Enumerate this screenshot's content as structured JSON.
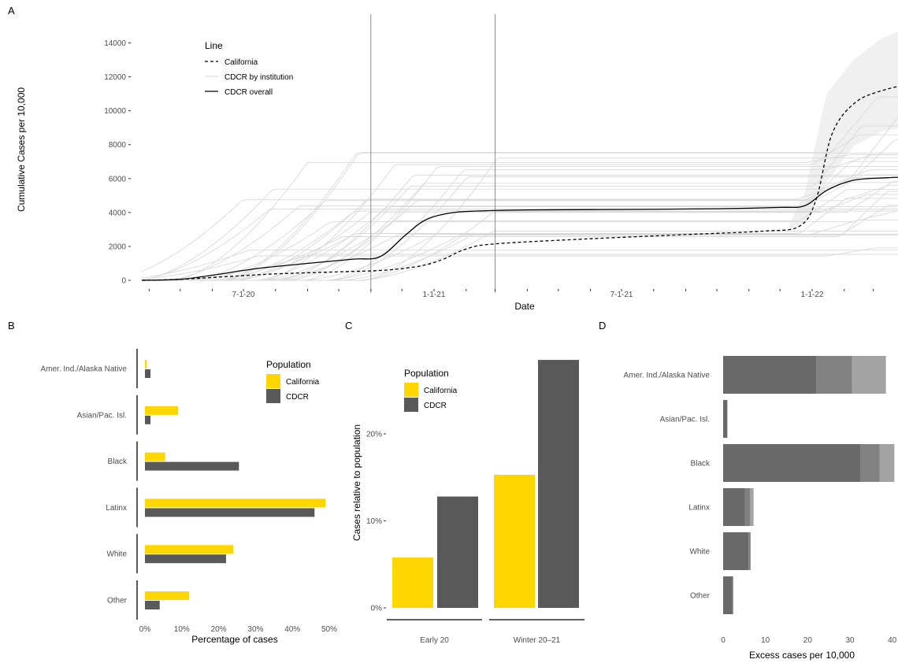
{
  "chart_data": [
    {
      "panel": "A",
      "type": "line",
      "xlabel": "Date",
      "ylabel": "Cumulative Cases per 10,000",
      "x_ticks": [
        "7-1-20",
        "1-1-21",
        "7-1-21",
        "1-1-22"
      ],
      "x_tick_dates": [
        "2020-07-01",
        "2021-01-01",
        "2021-07-01",
        "2022-01-01"
      ],
      "xlim": [
        "2020-03-15",
        "2022-04-30"
      ],
      "y_ticks": [
        "0",
        "2000",
        "4000",
        "6000",
        "8000",
        "10000",
        "12000",
        "14000"
      ],
      "ylim": [
        0,
        15500
      ],
      "vlines": [
        "2020-11-01",
        "2021-03-01"
      ],
      "legend_title": "Line",
      "legend_items": [
        "California",
        "CDCR by institution",
        "CDCR overall"
      ],
      "colors": {
        "institution": "#d9d9d9",
        "overall": "#000000",
        "ribbon": "#f0f0f0"
      },
      "series": [
        {
          "name": "California",
          "style": "dashed",
          "dates": [
            "2020-03-25",
            "2020-05-01",
            "2020-06-15",
            "2020-08-01",
            "2020-10-01",
            "2020-11-15",
            "2020-12-20",
            "2021-01-10",
            "2021-02-01",
            "2021-03-01",
            "2021-06-01",
            "2021-09-01",
            "2021-11-15",
            "2021-12-20",
            "2022-01-05",
            "2022-01-20",
            "2022-02-10",
            "2022-03-10",
            "2022-04-30"
          ],
          "values": [
            0,
            60,
            220,
            380,
            500,
            600,
            860,
            1250,
            1850,
            2150,
            2450,
            2700,
            2900,
            3200,
            4800,
            8600,
            10400,
            11200,
            11900
          ]
        },
        {
          "name": "CDCR overall",
          "style": "solid",
          "dates": [
            "2020-03-25",
            "2020-05-01",
            "2020-06-01",
            "2020-07-15",
            "2020-09-01",
            "2020-10-15",
            "2020-11-10",
            "2020-12-05",
            "2020-12-25",
            "2021-01-20",
            "2021-02-20",
            "2021-04-01",
            "2021-07-01",
            "2021-10-01",
            "2021-12-01",
            "2021-12-25",
            "2022-01-15",
            "2022-02-10",
            "2022-03-15",
            "2022-04-30"
          ],
          "values": [
            0,
            60,
            300,
            700,
            1000,
            1250,
            1400,
            2700,
            3600,
            4000,
            4100,
            4150,
            4180,
            4220,
            4300,
            4400,
            5300,
            5900,
            6050,
            6150
          ]
        }
      ],
      "ribbon": {
        "dates": [
          "2021-12-10",
          "2021-12-25",
          "2022-01-15",
          "2022-02-10",
          "2022-03-10",
          "2022-04-30"
        ],
        "low": [
          3000,
          3400,
          5800,
          7900,
          8800,
          9300
        ],
        "high": [
          3300,
          5200,
          11000,
          13000,
          14300,
          15500
        ]
      }
    },
    {
      "panel": "B",
      "type": "bar",
      "orientation": "horizontal",
      "categories": [
        "Amer. Ind./Alaska Native",
        "Asian/Pac. Isl.",
        "Black",
        "Latinx",
        "White",
        "Other"
      ],
      "series": [
        {
          "name": "California",
          "values": [
            0.5,
            9,
            5.5,
            49,
            24,
            12
          ]
        },
        {
          "name": "CDCR",
          "values": [
            1.5,
            1.5,
            25.5,
            46,
            22,
            4
          ]
        }
      ],
      "xlabel": "Percentage of cases",
      "x_ticks": [
        "0%",
        "10%",
        "20%",
        "30%",
        "40%",
        "50%"
      ],
      "xlim": [
        0,
        50
      ],
      "legend_title": "Population",
      "legend_items": [
        "California",
        "CDCR"
      ],
      "colors": {
        "California": "#ffd700",
        "CDCR": "#595959"
      }
    },
    {
      "panel": "C",
      "type": "bar",
      "categories": [
        "Early 20",
        "Winter 20–21"
      ],
      "series": [
        {
          "name": "California",
          "values": [
            5.8,
            15.3
          ]
        },
        {
          "name": "CDCR",
          "values": [
            12.8,
            28.5
          ]
        }
      ],
      "ylabel": "Cases relative to population",
      "y_ticks": [
        "0%",
        "10%",
        "20%"
      ],
      "ylim": [
        0,
        28.5
      ],
      "legend_title": "Population",
      "legend_items": [
        "California",
        "CDCR"
      ],
      "colors": {
        "California": "#ffd700",
        "CDCR": "#595959"
      }
    },
    {
      "panel": "D",
      "type": "bar",
      "orientation": "horizontal",
      "stacked": true,
      "categories": [
        "Amer. Ind./Alaska Native",
        "Asian/Pac. Isl.",
        "Black",
        "Latinx",
        "White",
        "Other"
      ],
      "segments": [
        [
          22,
          8.5,
          8
        ],
        [
          1,
          0,
          0
        ],
        [
          32.5,
          4.5,
          3.5
        ],
        [
          5.2,
          1.2,
          0.8
        ],
        [
          6,
          0.5,
          0
        ],
        [
          2.2,
          0.2,
          0
        ]
      ],
      "segment_colors": [
        "#696969",
        "#818181",
        "#a3a3a3"
      ],
      "xlabel": "Excess cases per 10,000",
      "x_ticks": [
        "0",
        "10",
        "20",
        "30",
        "40"
      ],
      "xlim": [
        0,
        40
      ]
    }
  ],
  "panel_labels": [
    "A",
    "B",
    "C",
    "D"
  ]
}
